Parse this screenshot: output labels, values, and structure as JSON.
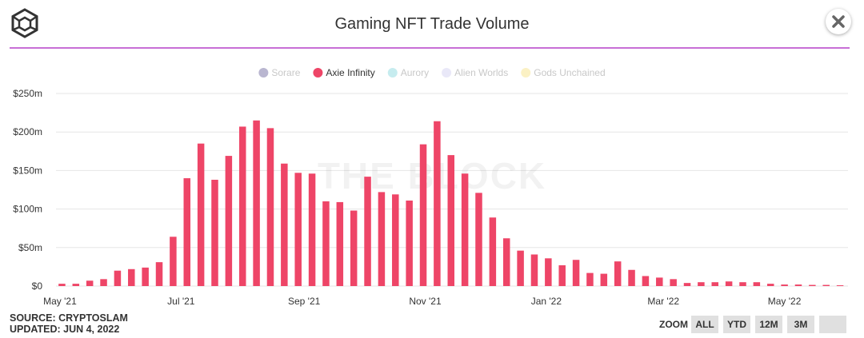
{
  "title": "Gaming NFT Trade Volume",
  "watermark": "THE BLOCK",
  "footer": {
    "source": "SOURCE: CRYPTOSLAM",
    "updated": "UPDATED: JUN 4, 2022"
  },
  "zoom": {
    "label": "ZOOM",
    "buttons": [
      "ALL",
      "YTD",
      "12M",
      "3M",
      ""
    ]
  },
  "icons": {
    "logo": "the-block-logo-icon",
    "close": "close-icon"
  },
  "colors": {
    "accent_rule": "#c86fd6",
    "axie": "#ee4567",
    "sorare": "#b9b6d0",
    "aurory": "#c6ecef",
    "alien_worlds": "#e9e8f8",
    "gods_unchained": "#fbf1c4"
  },
  "chart_data": {
    "type": "bar",
    "legend_position": "top-center",
    "grid": true,
    "series": [
      {
        "name": "Sorare",
        "color": "#b9b6d0",
        "visible": false
      },
      {
        "name": "Axie Infinity",
        "color": "#ee4567",
        "visible": true,
        "points": [
          [
            "2021-05-02",
            3
          ],
          [
            "2021-05-09",
            3
          ],
          [
            "2021-05-16",
            7
          ],
          [
            "2021-05-23",
            9
          ],
          [
            "2021-05-30",
            20
          ],
          [
            "2021-06-06",
            22
          ],
          [
            "2021-06-13",
            24
          ],
          [
            "2021-06-20",
            31
          ],
          [
            "2021-06-27",
            64
          ],
          [
            "2021-07-04",
            140
          ],
          [
            "2021-07-11",
            185
          ],
          [
            "2021-07-18",
            138
          ],
          [
            "2021-07-25",
            169
          ],
          [
            "2021-08-01",
            207
          ],
          [
            "2021-08-08",
            215
          ],
          [
            "2021-08-15",
            205
          ],
          [
            "2021-08-22",
            159
          ],
          [
            "2021-08-29",
            147
          ],
          [
            "2021-09-05",
            146
          ],
          [
            "2021-09-12",
            110
          ],
          [
            "2021-09-19",
            109
          ],
          [
            "2021-09-26",
            98
          ],
          [
            "2021-10-03",
            142
          ],
          [
            "2021-10-10",
            122
          ],
          [
            "2021-10-17",
            119
          ],
          [
            "2021-10-24",
            111
          ],
          [
            "2021-10-31",
            184
          ],
          [
            "2021-11-07",
            214
          ],
          [
            "2021-11-14",
            170
          ],
          [
            "2021-11-21",
            146
          ],
          [
            "2021-11-28",
            121
          ],
          [
            "2021-12-05",
            89
          ],
          [
            "2021-12-12",
            62
          ],
          [
            "2021-12-19",
            46
          ],
          [
            "2021-12-26",
            41
          ],
          [
            "2022-01-02",
            36
          ],
          [
            "2022-01-09",
            27
          ],
          [
            "2022-01-16",
            34
          ],
          [
            "2022-01-23",
            17
          ],
          [
            "2022-01-30",
            16
          ],
          [
            "2022-02-06",
            32
          ],
          [
            "2022-02-13",
            21
          ],
          [
            "2022-02-20",
            13
          ],
          [
            "2022-02-27",
            11
          ],
          [
            "2022-03-06",
            9
          ],
          [
            "2022-03-13",
            4
          ],
          [
            "2022-03-20",
            5
          ],
          [
            "2022-03-27",
            5
          ],
          [
            "2022-04-03",
            6
          ],
          [
            "2022-04-10",
            5
          ],
          [
            "2022-04-17",
            5
          ],
          [
            "2022-04-24",
            3
          ],
          [
            "2022-05-01",
            2
          ],
          [
            "2022-05-08",
            2
          ],
          [
            "2022-05-15",
            1.5
          ],
          [
            "2022-05-22",
            1.5
          ],
          [
            "2022-05-29",
            1
          ]
        ]
      },
      {
        "name": "Aurory",
        "color": "#c6ecef",
        "visible": false
      },
      {
        "name": "Alien Worlds",
        "color": "#e9e8f8",
        "visible": false
      },
      {
        "name": "Gods Unchained",
        "color": "#fbf1c4",
        "visible": false
      }
    ],
    "y_unit": "millions USD",
    "ylim": [
      0,
      250
    ],
    "y_ticks": [
      0,
      50,
      100,
      150,
      200,
      250
    ],
    "y_tick_labels": [
      "$0",
      "$50m",
      "$100m",
      "$150m",
      "$200m",
      "$250m"
    ],
    "xlim": [
      "2021-04-29",
      "2022-06-02"
    ],
    "x_ticks": [
      "2021-05-01",
      "2021-07-01",
      "2021-09-01",
      "2021-11-01",
      "2022-01-01",
      "2022-03-01",
      "2022-05-01"
    ],
    "x_tick_labels": [
      "May '21",
      "Jul '21",
      "Sep '21",
      "Nov '21",
      "Jan '22",
      "Mar '22",
      "May '22"
    ]
  }
}
